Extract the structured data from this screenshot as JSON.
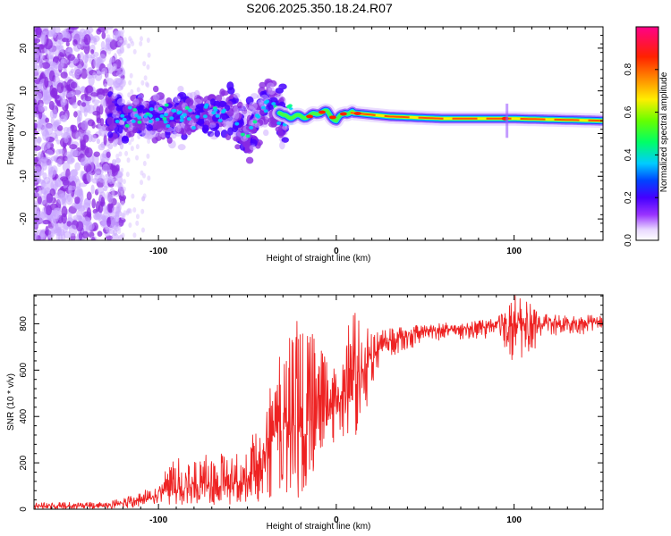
{
  "title": "S206.2025.350.18.24.R07",
  "chart_data": [
    {
      "type": "heatmap",
      "name": "spectrogram",
      "xlabel": "Height of straight line (km)",
      "ylabel": "Frequency (Hz)",
      "xlim": [
        -170,
        150
      ],
      "ylim": [
        -25,
        25
      ],
      "xticks": [
        -100,
        0,
        100
      ],
      "yticks": [
        -20,
        -10,
        0,
        10,
        20
      ],
      "colorbar": {
        "label": "Normalized spectral amplitude",
        "range": [
          0,
          1
        ],
        "ticks": [
          "0.0",
          "0.2",
          "0.4",
          "0.6",
          "0.8"
        ],
        "colors": [
          "#ffffff",
          "#c9a6ff",
          "#8a2be2",
          "#4000ff",
          "#0033ff",
          "#00ccff",
          "#00ff66",
          "#ccff00",
          "#ffee00",
          "#ff8800",
          "#ff2200",
          "#ff0080"
        ]
      },
      "ridge_frequency": [
        {
          "x": -125,
          "f": 4
        },
        {
          "x": -100,
          "f": 4
        },
        {
          "x": -80,
          "f": 4
        },
        {
          "x": -60,
          "f": 5
        },
        {
          "x": -50,
          "f": 0
        },
        {
          "x": -38,
          "f": 8
        },
        {
          "x": -30,
          "f": 4
        },
        {
          "x": -15,
          "f": 4
        },
        {
          "x": -10,
          "f": 5
        },
        {
          "x": -5,
          "f": 5
        },
        {
          "x": 0,
          "f": 3
        },
        {
          "x": 5,
          "f": 5
        },
        {
          "x": 30,
          "f": 4
        },
        {
          "x": 60,
          "f": 3.5
        },
        {
          "x": 100,
          "f": 3.5
        },
        {
          "x": 150,
          "f": 3
        }
      ]
    },
    {
      "type": "line",
      "name": "snr",
      "xlabel": "Height of straight line (km)",
      "ylabel": "SNR (10 * v/v)",
      "xlim": [
        -170,
        150
      ],
      "ylim": [
        0,
        925
      ],
      "xticks": [
        -100,
        0,
        100
      ],
      "yticks": [
        0,
        200,
        400,
        600,
        800
      ],
      "color": "#ee2222",
      "envelope": [
        {
          "x": -170,
          "low": 0,
          "mean": 15,
          "high": 30
        },
        {
          "x": -130,
          "low": 0,
          "mean": 15,
          "high": 30
        },
        {
          "x": -110,
          "low": 10,
          "mean": 40,
          "high": 70
        },
        {
          "x": -90,
          "low": 20,
          "mean": 90,
          "high": 220
        },
        {
          "x": -70,
          "low": 20,
          "mean": 100,
          "high": 240
        },
        {
          "x": -50,
          "low": 20,
          "mean": 110,
          "high": 240
        },
        {
          "x": -40,
          "low": 40,
          "mean": 250,
          "high": 520
        },
        {
          "x": -30,
          "low": 40,
          "mean": 380,
          "high": 720
        },
        {
          "x": -20,
          "low": 50,
          "mean": 350,
          "high": 860
        },
        {
          "x": -10,
          "low": 200,
          "mean": 420,
          "high": 700
        },
        {
          "x": 0,
          "low": 300,
          "mean": 480,
          "high": 640
        },
        {
          "x": 10,
          "low": 280,
          "mean": 520,
          "high": 860
        },
        {
          "x": 20,
          "low": 500,
          "mean": 650,
          "high": 760
        },
        {
          "x": 30,
          "low": 650,
          "mean": 730,
          "high": 780
        },
        {
          "x": 50,
          "low": 720,
          "mean": 770,
          "high": 800
        },
        {
          "x": 90,
          "low": 740,
          "mean": 790,
          "high": 820
        },
        {
          "x": 100,
          "low": 610,
          "mean": 800,
          "high": 925
        },
        {
          "x": 120,
          "low": 750,
          "mean": 800,
          "high": 840
        },
        {
          "x": 150,
          "low": 760,
          "mean": 805,
          "high": 840
        }
      ]
    }
  ]
}
